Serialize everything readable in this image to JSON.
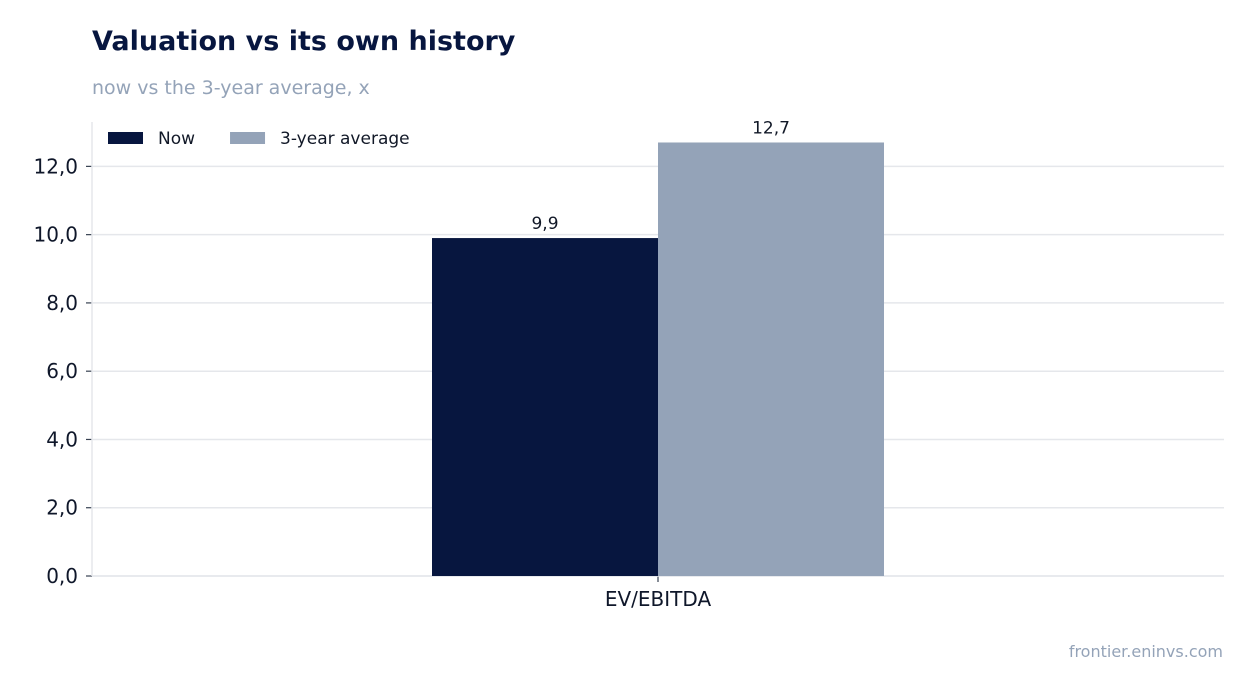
{
  "header": {
    "title": "Valuation vs its own history",
    "subtitle": "now vs the 3-year average, x"
  },
  "footer": {
    "source": "frontier.eninvs.com"
  },
  "chart_data": {
    "type": "bar",
    "categories": [
      "EV/EBITDA"
    ],
    "series": [
      {
        "name": "Now",
        "values": [
          9.9
        ],
        "labels": [
          "9,9"
        ],
        "color": "#07163f"
      },
      {
        "name": "3-year average",
        "values": [
          12.7
        ],
        "labels": [
          "12,7"
        ],
        "color": "#94a3b8"
      }
    ],
    "ylim": [
      0,
      13.3
    ],
    "yticks": [
      0,
      2,
      4,
      6,
      8,
      10,
      12
    ],
    "ytick_labels": [
      "0,0",
      "2,0",
      "4,0",
      "6,0",
      "8,0",
      "10,0",
      "12,0"
    ],
    "grid": true,
    "legend": "top-left"
  }
}
